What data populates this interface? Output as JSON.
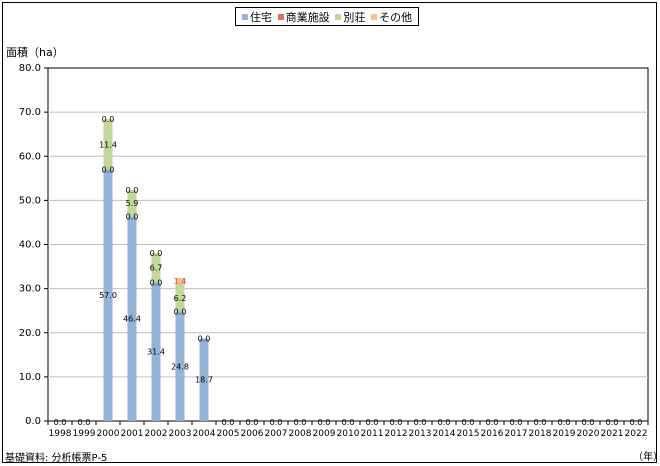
{
  "chart_data": {
    "type": "bar",
    "stacked": true,
    "ylabel": "面積（ha）",
    "xunit": "（年）",
    "ylim": [
      0,
      80
    ],
    "yticks": [
      "0.0",
      "10.0",
      "20.0",
      "30.0",
      "40.0",
      "50.0",
      "60.0",
      "70.0",
      "80.0"
    ],
    "grid": true,
    "legend_position": "top-center",
    "categories": [
      "1998",
      "1999",
      "2000",
      "2001",
      "2002",
      "2003",
      "2004",
      "2005",
      "2006",
      "2007",
      "2008",
      "2009",
      "2010",
      "2011",
      "2012",
      "2013",
      "2014",
      "2015",
      "2016",
      "2017",
      "2018",
      "2019",
      "2020",
      "2021",
      "2022"
    ],
    "series": [
      {
        "name": "住宅",
        "color": "#95b3d7",
        "values": [
          0.0,
          0.0,
          57.0,
          46.4,
          31.4,
          24.8,
          18.7,
          0.0,
          0.0,
          0.0,
          0.0,
          0.0,
          0.0,
          0.0,
          0.0,
          0.0,
          0.0,
          0.0,
          0.0,
          0.0,
          0.0,
          0.0,
          0.0,
          0.0,
          0.0
        ]
      },
      {
        "name": "商業施設",
        "color": "#e4715f",
        "values": [
          null,
          null,
          0.0,
          0.0,
          0.0,
          0.0,
          0.0,
          null,
          null,
          null,
          null,
          null,
          null,
          null,
          null,
          null,
          null,
          null,
          null,
          null,
          null,
          null,
          null,
          null,
          null
        ]
      },
      {
        "name": "別荘",
        "color": "#c3d69b",
        "values": [
          null,
          null,
          11.4,
          5.9,
          6.7,
          6.2,
          null,
          null,
          null,
          null,
          null,
          null,
          null,
          null,
          null,
          null,
          null,
          null,
          null,
          null,
          null,
          null,
          null,
          null,
          null
        ]
      },
      {
        "name": "その他",
        "color": "#fac090",
        "values": [
          null,
          null,
          0.0,
          0.0,
          0.0,
          1.4,
          null,
          null,
          null,
          null,
          null,
          null,
          null,
          null,
          null,
          null,
          null,
          null,
          null,
          null,
          null,
          null,
          null,
          null,
          null
        ]
      }
    ]
  },
  "source": "基礎資料: 分析帳票P-5"
}
